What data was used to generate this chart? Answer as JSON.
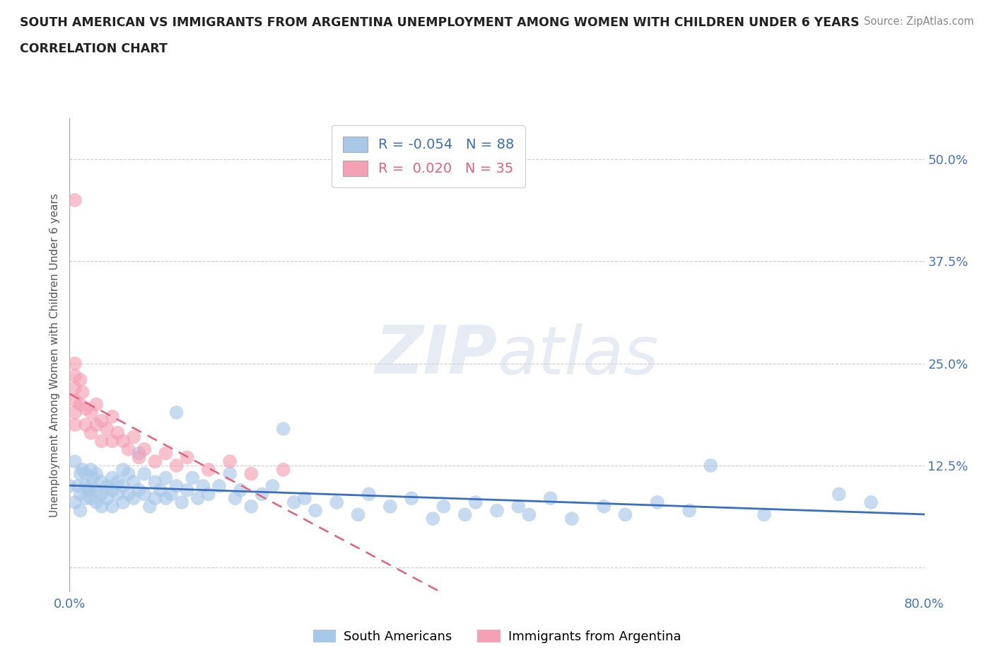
{
  "title_line1": "SOUTH AMERICAN VS IMMIGRANTS FROM ARGENTINA UNEMPLOYMENT AMONG WOMEN WITH CHILDREN UNDER 6 YEARS",
  "title_line2": "CORRELATION CHART",
  "source": "Source: ZipAtlas.com",
  "ylabel": "Unemployment Among Women with Children Under 6 years",
  "xlim": [
    0.0,
    0.8
  ],
  "ylim": [
    -0.03,
    0.55
  ],
  "color_blue": "#a8c8e8",
  "color_pink": "#f4a0b5",
  "color_line_blue": "#3a6fbc",
  "color_line_pink": "#e8607a",
  "tick_color": "#4472c4",
  "sa_x": [
    0.0,
    0.005,
    0.005,
    0.008,
    0.01,
    0.01,
    0.01,
    0.012,
    0.015,
    0.015,
    0.015,
    0.018,
    0.02,
    0.02,
    0.02,
    0.022,
    0.025,
    0.025,
    0.025,
    0.03,
    0.03,
    0.03,
    0.035,
    0.035,
    0.04,
    0.04,
    0.04,
    0.045,
    0.045,
    0.05,
    0.05,
    0.05,
    0.055,
    0.055,
    0.06,
    0.06,
    0.065,
    0.065,
    0.07,
    0.07,
    0.075,
    0.08,
    0.08,
    0.085,
    0.09,
    0.09,
    0.095,
    0.1,
    0.1,
    0.105,
    0.11,
    0.115,
    0.12,
    0.125,
    0.13,
    0.14,
    0.15,
    0.155,
    0.16,
    0.17,
    0.18,
    0.19,
    0.2,
    0.21,
    0.22,
    0.23,
    0.25,
    0.27,
    0.28,
    0.3,
    0.32,
    0.34,
    0.35,
    0.37,
    0.38,
    0.4,
    0.42,
    0.43,
    0.45,
    0.47,
    0.5,
    0.52,
    0.55,
    0.58,
    0.6,
    0.65,
    0.72,
    0.75
  ],
  "sa_y": [
    0.1,
    0.08,
    0.13,
    0.1,
    0.115,
    0.09,
    0.07,
    0.12,
    0.1,
    0.115,
    0.085,
    0.095,
    0.12,
    0.1,
    0.085,
    0.11,
    0.095,
    0.115,
    0.08,
    0.105,
    0.09,
    0.075,
    0.1,
    0.085,
    0.11,
    0.095,
    0.075,
    0.105,
    0.09,
    0.12,
    0.1,
    0.08,
    0.115,
    0.09,
    0.105,
    0.085,
    0.14,
    0.095,
    0.115,
    0.09,
    0.075,
    0.105,
    0.085,
    0.095,
    0.11,
    0.085,
    0.09,
    0.19,
    0.1,
    0.08,
    0.095,
    0.11,
    0.085,
    0.1,
    0.09,
    0.1,
    0.115,
    0.085,
    0.095,
    0.075,
    0.09,
    0.1,
    0.17,
    0.08,
    0.085,
    0.07,
    0.08,
    0.065,
    0.09,
    0.075,
    0.085,
    0.06,
    0.075,
    0.065,
    0.08,
    0.07,
    0.075,
    0.065,
    0.085,
    0.06,
    0.075,
    0.065,
    0.08,
    0.07,
    0.125,
    0.065,
    0.09,
    0.08
  ],
  "arg_x": [
    0.005,
    0.005,
    0.005,
    0.005,
    0.005,
    0.005,
    0.005,
    0.01,
    0.01,
    0.012,
    0.015,
    0.015,
    0.02,
    0.02,
    0.025,
    0.025,
    0.03,
    0.03,
    0.035,
    0.04,
    0.04,
    0.045,
    0.05,
    0.055,
    0.06,
    0.065,
    0.07,
    0.08,
    0.09,
    0.1,
    0.11,
    0.13,
    0.15,
    0.17,
    0.2
  ],
  "arg_y": [
    0.45,
    0.25,
    0.235,
    0.22,
    0.205,
    0.19,
    0.175,
    0.23,
    0.2,
    0.215,
    0.195,
    0.175,
    0.19,
    0.165,
    0.2,
    0.175,
    0.18,
    0.155,
    0.17,
    0.185,
    0.155,
    0.165,
    0.155,
    0.145,
    0.16,
    0.135,
    0.145,
    0.13,
    0.14,
    0.125,
    0.135,
    0.12,
    0.13,
    0.115,
    0.12
  ]
}
